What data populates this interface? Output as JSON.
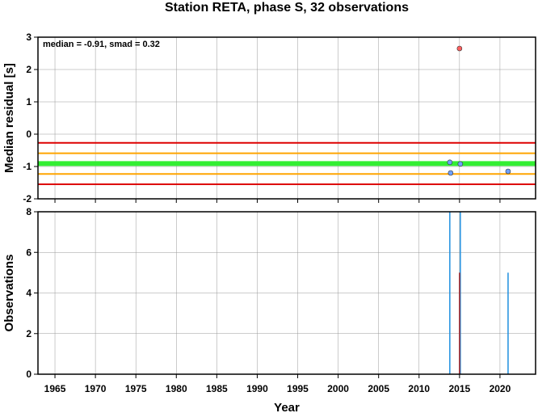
{
  "chart_data": [
    {
      "type": "scatter",
      "title": "Station RETA, phase S, 32 observations",
      "annotation": "median = -0.91, smad = 0.32",
      "ylabel": "Median residual [s]",
      "xlim": [
        1962.9,
        2024.4
      ],
      "xticks": [
        1965,
        1970,
        1975,
        1980,
        1985,
        1990,
        1995,
        2000,
        2005,
        2010,
        2015,
        2020
      ],
      "ylim": [
        -2,
        3
      ],
      "yticks": [
        -2,
        -1,
        0,
        1,
        2,
        3
      ],
      "grid": true,
      "hlines": [
        {
          "value": -0.27,
          "color": "#dd0000"
        },
        {
          "value": -1.55,
          "color": "#dd0000"
        },
        {
          "value": -0.59,
          "color": "#ffa500"
        },
        {
          "value": -1.23,
          "color": "#ffa500"
        },
        {
          "value": -0.91,
          "color": "#33ee33"
        }
      ],
      "series": [
        {
          "color": "#6fa0ff",
          "x": [
            2013.8,
            2013.9,
            2015.1,
            2021.0
          ],
          "values": [
            -0.87,
            -1.2,
            -0.92,
            -1.15
          ]
        },
        {
          "color": "#ff6060",
          "x": [
            2015.0
          ],
          "values": [
            2.65
          ]
        }
      ]
    },
    {
      "type": "bar",
      "xlabel": "Year",
      "ylabel": "Observations",
      "xlim": [
        1962.9,
        2024.4
      ],
      "xticks": [
        1965,
        1970,
        1975,
        1980,
        1985,
        1990,
        1995,
        2000,
        2005,
        2010,
        2015,
        2020
      ],
      "ylim": [
        0,
        8
      ],
      "yticks": [
        0,
        2,
        4,
        6,
        8
      ],
      "grid": true,
      "series": [
        {
          "color": "#1f8fdf",
          "x": [
            2013.8,
            2015.1,
            2021.0
          ],
          "values": [
            8,
            8,
            5
          ]
        },
        {
          "color": "#aa2222",
          "x": [
            2015.0
          ],
          "values": [
            5
          ]
        }
      ]
    }
  ]
}
